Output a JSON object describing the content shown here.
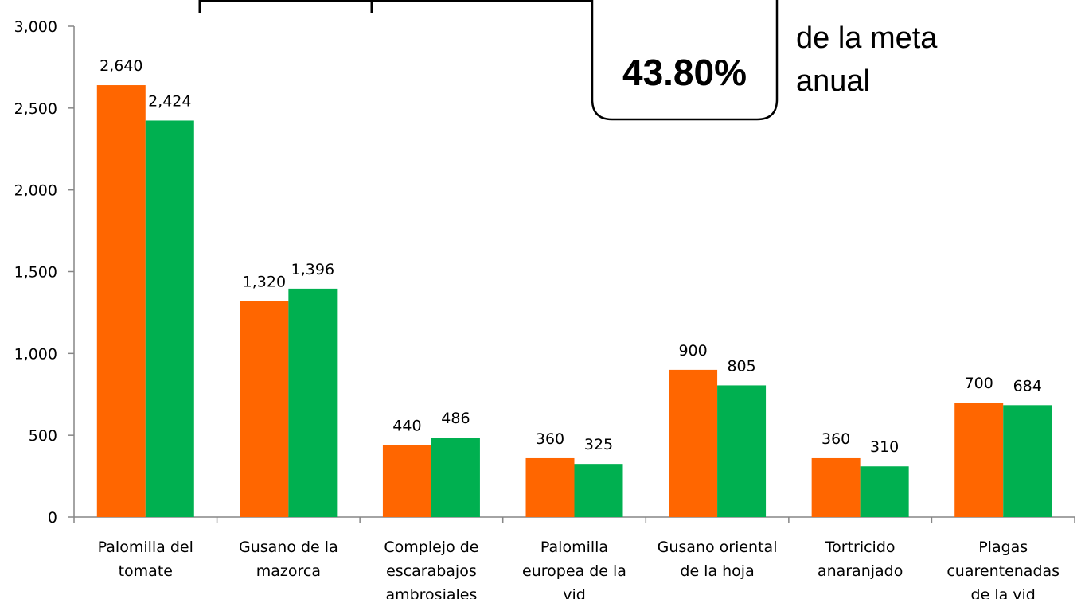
{
  "chart_data": {
    "type": "bar",
    "categories": [
      "Palomilla del\ntomate",
      "Gusano de la\nmazorca",
      "Complejo de\nescarabajos\nambrosiales",
      "Palomilla\neuropea de la\nvid",
      "Gusano oriental\nde la hoja",
      "Tortricido\nanaranjado",
      "Plagas\ncuarentenadas\nde la vid"
    ],
    "series": [
      {
        "color": "#ff6600",
        "values": [
          2640,
          1320,
          440,
          360,
          900,
          360,
          700
        ],
        "value_labels": [
          "2,640",
          "1,320",
          "440",
          "360",
          "900",
          "360",
          "700"
        ]
      },
      {
        "color": "#00b050",
        "values": [
          2424,
          1396,
          486,
          325,
          805,
          310,
          684
        ],
        "value_labels": [
          "2,424",
          "1,396",
          "486",
          "325",
          "805",
          "310",
          "684"
        ]
      }
    ],
    "ylim": [
      0,
      3000
    ],
    "yticks": [
      0,
      500,
      {
        "value": 1000,
        "label": "1,000"
      },
      {
        "value": 1500,
        "label": "1,500"
      },
      {
        "value": 2000,
        "label": "2,000"
      },
      {
        "value": 2500,
        "label": "2,500"
      },
      {
        "value": 3000,
        "label": "3,000"
      }
    ],
    "grid": false,
    "annotation_box": "43.80%",
    "annotation_text": [
      "de la meta",
      "anual"
    ]
  }
}
